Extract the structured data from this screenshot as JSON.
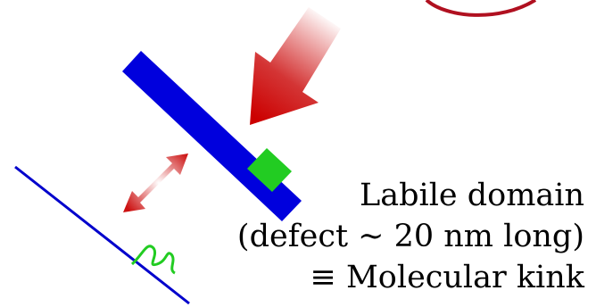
{
  "label": {
    "lines": [
      "Labile domain",
      "(defect ~ 20 nm long)",
      "≡ Molecular kink"
    ]
  }
}
